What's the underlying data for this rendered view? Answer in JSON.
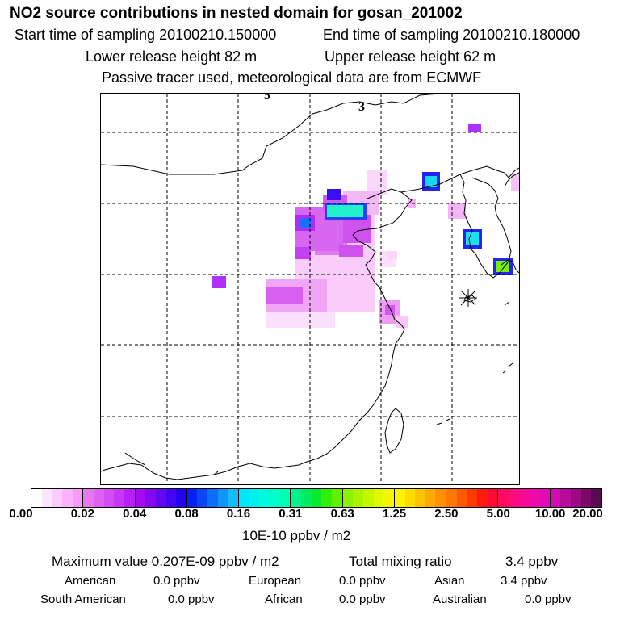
{
  "header": {
    "title": "NO2 source contributions in nested domain for gosan_201002",
    "start_time": "Start time of sampling 20100210.150000",
    "end_time": "End time of sampling 20100210.180000",
    "lower_height": "Lower release height   82 m",
    "upper_height": "Upper release height   62 m",
    "note": "Passive tracer used, meteorological data are from ECMWF"
  },
  "map": {
    "contour_labels": [
      "5",
      "3"
    ]
  },
  "colorbar": {
    "ticks": [
      "0.00",
      "0.02",
      "0.04",
      "0.08",
      "0.16",
      "0.31",
      "0.63",
      "1.25",
      "2.50",
      "5.00",
      "10.00",
      "20.00"
    ],
    "colors": [
      [
        "#ffffff",
        "#fde6fd",
        "#fccdfc",
        "#f9b3fa",
        "#f79af8"
      ],
      [
        "#e778f2",
        "#dd62f1",
        "#d44cf3",
        "#c636f4",
        "#b81ff6"
      ],
      [
        "#a40aef",
        "#8408f0",
        "#6306f2",
        "#4405f4",
        "#2203f4"
      ],
      [
        "#0620f5",
        "#0a48f7",
        "#0d6ff8",
        "#1096f8",
        "#13bdf9"
      ],
      [
        "#00e5ff",
        "#00f0ee",
        "#00fadd",
        "#00ffcc",
        "#00ffb0"
      ],
      [
        "#00f28a",
        "#00ea62",
        "#08ea30",
        "#30f00a",
        "#5ef200"
      ],
      [
        "#8cf200",
        "#aaf400",
        "#c6f600",
        "#e0f800",
        "#f6f600"
      ],
      [
        "#fff200",
        "#ffdc00",
        "#ffc400",
        "#ffaa00",
        "#ff9000"
      ],
      [
        "#ff7600",
        "#ff5a00",
        "#ff3a00",
        "#ff1a10",
        "#ff0a30"
      ],
      [
        "#ff0a60",
        "#ff0a80",
        "#f80a96",
        "#ee0aa8",
        "#e20ab6"
      ],
      [
        "#d20ab0",
        "#b80a9a",
        "#9a0a82",
        "#7a0a68",
        "#5a0a50"
      ]
    ],
    "unit": "10E-10 ppbv / m2"
  },
  "summary": {
    "max_value": "Maximum value  0.207E-09 ppbv / m2",
    "total_label": "Total mixing ratio",
    "total_value": "3.4 ppbv",
    "regions": [
      {
        "name": "American",
        "value": "0.0 ppbv"
      },
      {
        "name": "European",
        "value": "0.0 ppbv"
      },
      {
        "name": "Asian",
        "value": "3.4 ppbv"
      },
      {
        "name": "South American",
        "value": "0.0 ppbv"
      },
      {
        "name": "African",
        "value": "0.0 ppbv"
      },
      {
        "name": "Australian",
        "value": "0.0 ppbv"
      }
    ]
  }
}
